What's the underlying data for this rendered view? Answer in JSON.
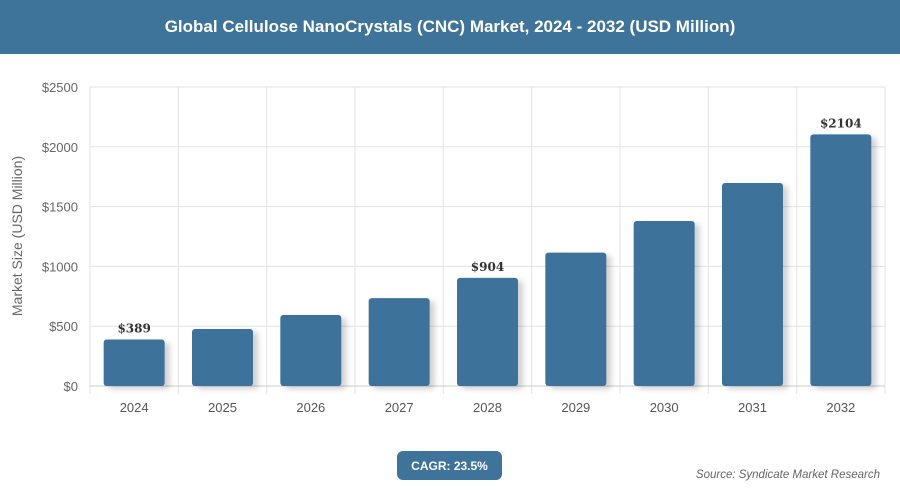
{
  "header": {
    "title": "Global Cellulose NanoCrystals (CNC) Market, 2024 - 2032 (USD Million)"
  },
  "chart_data": {
    "type": "bar",
    "title": "Global Cellulose NanoCrystals (CNC) Market, 2024 - 2032 (USD Million)",
    "categories": [
      "2024",
      "2025",
      "2026",
      "2027",
      "2028",
      "2029",
      "2030",
      "2031",
      "2032"
    ],
    "values": [
      389,
      477,
      594,
      735,
      904,
      1115,
      1380,
      1697,
      2104
    ],
    "data_labels": {
      "0": "$389",
      "4": "$904",
      "8": "$2104"
    },
    "ylabel": "Market Size (USD Million)",
    "xlabel": "",
    "ylim": [
      0,
      2500
    ],
    "yticks": [
      0,
      500,
      1000,
      1500,
      2000,
      2500
    ],
    "ytick_labels": [
      "$0",
      "$500",
      "$1000",
      "$1500",
      "$2000",
      "$2500"
    ],
    "grid": true,
    "bar_color": "#3e739a"
  },
  "footer": {
    "cagr": "CAGR: 23.5%",
    "source": "Source: Syndicate Market Research"
  }
}
